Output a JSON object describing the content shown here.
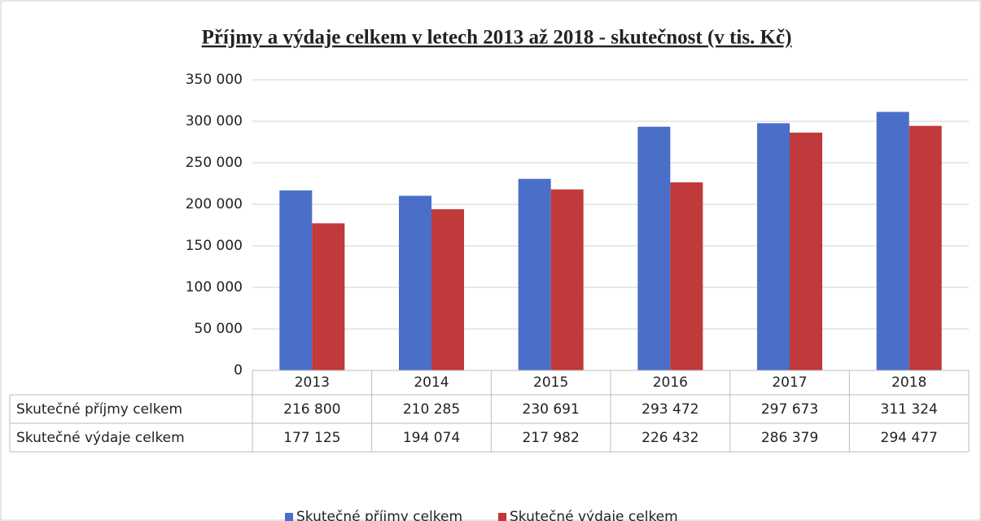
{
  "chart_data": {
    "type": "bar",
    "title": "Příjmy a výdaje celkem v letech 2013 až 2018 - skutečnost (v tis. Kč)",
    "categories": [
      "2013",
      "2014",
      "2015",
      "2016",
      "2017",
      "2018"
    ],
    "series": [
      {
        "name": "Skutečné příjmy celkem",
        "color": "#4a6fc8",
        "values": [
          216800,
          210285,
          230691,
          293472,
          297673,
          311324
        ],
        "value_labels": [
          "216 800",
          "210 285",
          "230 691",
          "293 472",
          "297 673",
          "311 324"
        ]
      },
      {
        "name": "Skutečné výdaje celkem",
        "color": "#c0393b",
        "values": [
          177125,
          194074,
          217982,
          226432,
          286379,
          294477
        ],
        "value_labels": [
          "177 125",
          "194 074",
          "217 982",
          "226 432",
          "286 379",
          "294 477"
        ]
      }
    ],
    "ylim": [
      0,
      350000
    ],
    "yticks": [
      0,
      {
        "value": 50000,
        "label": "50 000"
      },
      {
        "value": 100000,
        "label": "100 000"
      },
      {
        "value": 150000,
        "label": "150 000"
      },
      {
        "value": 200000,
        "label": "200 000"
      },
      {
        "value": 250000,
        "label": "250 000"
      },
      {
        "value": 300000,
        "label": "300 000"
      },
      {
        "value": 350000,
        "label": "350 000"
      }
    ],
    "grid": true,
    "legend": "bottom",
    "data_table": true
  }
}
